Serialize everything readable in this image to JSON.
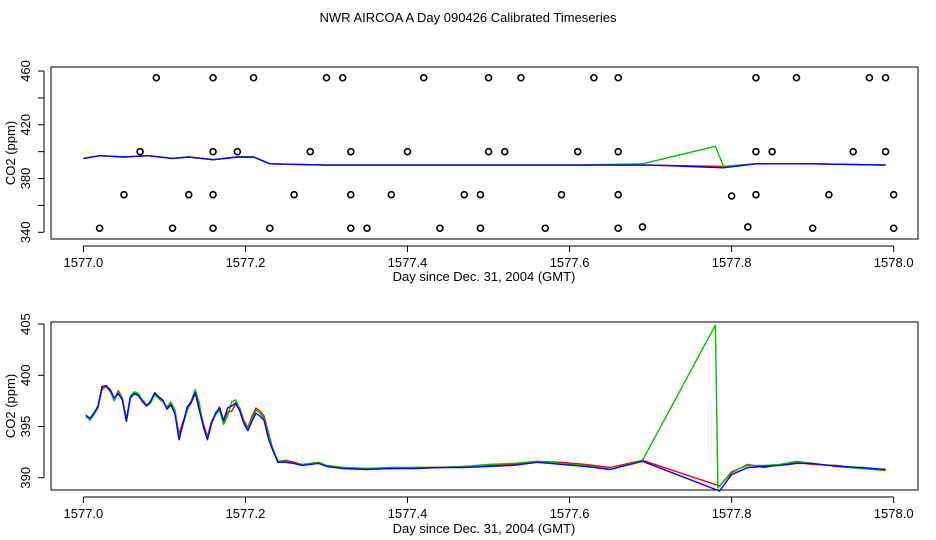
{
  "title": "NWR AIRCOA A  Day 090426  Calibrated Timeseries",
  "chart_data": [
    {
      "type": "line",
      "id": "top",
      "xlabel": "Day since Dec. 31, 2004 (GMT)",
      "ylabel": "CO2 (ppm)",
      "xlim": [
        1576.96,
        1578.03
      ],
      "ylim": [
        335,
        463
      ],
      "xticks": [
        "1577.0",
        "1577.2",
        "1577.4",
        "1577.6",
        "1577.8",
        "1578.0"
      ],
      "yticks": [
        "340",
        "380",
        "420",
        "460"
      ],
      "yticks_minor": [
        360,
        400,
        440
      ],
      "markers": [
        {
          "name": "calibration points",
          "style": "open-circle",
          "x": [
            1577.09,
            1577.16,
            1577.21,
            1577.3,
            1577.32,
            1577.42,
            1577.5,
            1577.54,
            1577.63,
            1577.66,
            1577.83,
            1577.88,
            1577.97,
            1577.99,
            1577.07,
            1577.16,
            1577.19,
            1577.28,
            1577.33,
            1577.4,
            1577.5,
            1577.52,
            1577.61,
            1577.66,
            1577.83,
            1577.85,
            1577.95,
            1577.99,
            1577.05,
            1577.13,
            1577.16,
            1577.26,
            1577.33,
            1577.38,
            1577.47,
            1577.49,
            1577.59,
            1577.66,
            1577.8,
            1577.83,
            1577.92,
            1578.0,
            1577.02,
            1577.11,
            1577.16,
            1577.23,
            1577.33,
            1577.35,
            1577.44,
            1577.49,
            1577.57,
            1577.66,
            1577.69,
            1577.82,
            1577.9,
            1578.0
          ],
          "y": [
            455,
            455,
            455,
            455,
            455,
            455,
            455,
            455,
            455,
            455,
            455,
            455,
            455,
            455,
            400,
            400,
            400,
            400,
            400,
            400,
            400,
            400,
            400,
            400,
            400,
            400,
            400,
            400,
            368,
            368,
            368,
            368,
            368,
            368,
            368,
            368,
            368,
            368,
            367,
            368,
            368,
            368,
            343,
            343,
            343,
            343,
            343,
            343,
            343,
            343,
            343,
            343,
            344,
            344,
            343,
            343
          ]
        }
      ],
      "series": [
        {
          "name": "red",
          "color": "#ff0000",
          "x": [
            1577.0,
            1577.02,
            1577.05,
            1577.08,
            1577.11,
            1577.13,
            1577.16,
            1577.19,
            1577.21,
            1577.23,
            1577.3,
            1577.4,
            1577.5,
            1577.6,
            1577.7,
            1577.79,
            1577.83,
            1577.9,
            1577.99
          ],
          "y": [
            395,
            397,
            396,
            397,
            395,
            396,
            394,
            396,
            396,
            391,
            390,
            390,
            390,
            390,
            390,
            389,
            391,
            391,
            390
          ]
        },
        {
          "name": "green",
          "color": "#00c000",
          "x": [
            1577.0,
            1577.02,
            1577.05,
            1577.08,
            1577.11,
            1577.13,
            1577.16,
            1577.19,
            1577.21,
            1577.23,
            1577.3,
            1577.4,
            1577.5,
            1577.6,
            1577.69,
            1577.78,
            1577.79,
            1577.83,
            1577.9,
            1577.99
          ],
          "y": [
            395,
            397,
            396,
            397,
            395,
            396,
            394,
            396,
            396,
            391,
            390,
            390,
            390,
            390,
            391,
            404,
            389,
            391,
            391,
            390
          ]
        },
        {
          "name": "blue",
          "color": "#0000ff",
          "x": [
            1577.0,
            1577.02,
            1577.05,
            1577.08,
            1577.11,
            1577.13,
            1577.16,
            1577.19,
            1577.21,
            1577.23,
            1577.3,
            1577.4,
            1577.5,
            1577.6,
            1577.7,
            1577.79,
            1577.83,
            1577.9,
            1577.99
          ],
          "y": [
            395,
            397,
            396,
            397,
            395,
            396,
            394,
            396,
            396,
            391,
            390,
            390,
            390,
            390,
            390,
            388,
            391,
            391,
            390
          ]
        }
      ]
    },
    {
      "type": "line",
      "id": "bottom",
      "xlabel": "Day since Dec. 31, 2004 (GMT)",
      "ylabel": "CO2 (ppm)",
      "xlim": [
        1576.96,
        1578.03
      ],
      "ylim": [
        388.8,
        405.2
      ],
      "xticks": [
        "1577.0",
        "1577.2",
        "1577.4",
        "1577.6",
        "1577.8",
        "1578.0"
      ],
      "yticks": [
        "390",
        "395",
        "400",
        "405"
      ],
      "series": [
        {
          "name": "red",
          "color": "#ff0000",
          "x": [
            1577.003,
            1577.008,
            1577.013,
            1577.018,
            1577.023,
            1577.028,
            1577.033,
            1577.038,
            1577.043,
            1577.048,
            1577.053,
            1577.058,
            1577.063,
            1577.068,
            1577.073,
            1577.078,
            1577.083,
            1577.088,
            1577.093,
            1577.098,
            1577.103,
            1577.108,
            1577.113,
            1577.118,
            1577.123,
            1577.128,
            1577.133,
            1577.138,
            1577.143,
            1577.148,
            1577.153,
            1577.158,
            1577.163,
            1577.168,
            1577.173,
            1577.178,
            1577.183,
            1577.188,
            1577.193,
            1577.198,
            1577.203,
            1577.208,
            1577.213,
            1577.218,
            1577.223,
            1577.228,
            1577.233,
            1577.24,
            1577.25,
            1577.26,
            1577.27,
            1577.28,
            1577.29,
            1577.3,
            1577.32,
            1577.35,
            1577.38,
            1577.41,
            1577.44,
            1577.47,
            1577.5,
            1577.53,
            1577.56,
            1577.59,
            1577.62,
            1577.65,
            1577.69,
            1577.785,
            1577.8,
            1577.82,
            1577.84,
            1577.86,
            1577.88,
            1577.9,
            1577.93,
            1577.96,
            1577.99
          ],
          "y": [
            396.0,
            395.7,
            396.2,
            396.8,
            398.6,
            398.9,
            398.4,
            397.6,
            398.5,
            397.8,
            395.7,
            398.0,
            398.3,
            398.1,
            397.6,
            397.1,
            397.4,
            398.2,
            397.8,
            397.5,
            396.8,
            397.3,
            396.5,
            394.3,
            395.5,
            396.6,
            397.3,
            398.2,
            397.0,
            395.3,
            394.0,
            395.5,
            396.2,
            396.9,
            395.5,
            396.4,
            396.5,
            397.2,
            396.8,
            395.6,
            394.9,
            396.0,
            396.8,
            396.5,
            396.0,
            394.5,
            393.0,
            391.6,
            391.7,
            391.5,
            391.3,
            391.4,
            391.5,
            391.2,
            391.0,
            390.9,
            390.9,
            391.0,
            391.0,
            391.1,
            391.2,
            391.3,
            391.6,
            391.5,
            391.3,
            391.0,
            391.7,
            389.2,
            390.5,
            391.3,
            391.0,
            391.3,
            391.5,
            391.3,
            391.2,
            390.9,
            390.8
          ]
        },
        {
          "name": "green",
          "color": "#00c000",
          "x": [
            1577.003,
            1577.008,
            1577.013,
            1577.018,
            1577.023,
            1577.028,
            1577.033,
            1577.038,
            1577.043,
            1577.048,
            1577.053,
            1577.058,
            1577.063,
            1577.068,
            1577.073,
            1577.078,
            1577.083,
            1577.088,
            1577.093,
            1577.098,
            1577.103,
            1577.108,
            1577.113,
            1577.118,
            1577.123,
            1577.128,
            1577.133,
            1577.138,
            1577.143,
            1577.148,
            1577.153,
            1577.158,
            1577.163,
            1577.168,
            1577.173,
            1577.178,
            1577.183,
            1577.188,
            1577.193,
            1577.198,
            1577.203,
            1577.208,
            1577.213,
            1577.218,
            1577.223,
            1577.228,
            1577.233,
            1577.24,
            1577.25,
            1577.26,
            1577.27,
            1577.28,
            1577.29,
            1577.3,
            1577.32,
            1577.35,
            1577.38,
            1577.41,
            1577.44,
            1577.47,
            1577.5,
            1577.53,
            1577.56,
            1577.59,
            1577.62,
            1577.65,
            1577.69,
            1577.78,
            1577.783,
            1577.8,
            1577.82,
            1577.84,
            1577.86,
            1577.88,
            1577.9,
            1577.93,
            1577.96,
            1577.99
          ],
          "y": [
            396.0,
            395.6,
            396.1,
            396.9,
            398.8,
            399.0,
            398.5,
            397.5,
            398.4,
            397.7,
            395.6,
            398.0,
            398.4,
            398.2,
            397.5,
            397.0,
            397.3,
            398.1,
            397.7,
            397.4,
            396.9,
            397.4,
            396.6,
            394.0,
            395.2,
            396.5,
            397.5,
            398.6,
            397.3,
            395.0,
            393.8,
            395.4,
            396.1,
            396.6,
            395.2,
            396.0,
            397.4,
            397.6,
            396.7,
            395.4,
            394.8,
            395.8,
            396.6,
            396.3,
            395.8,
            394.3,
            393.0,
            391.6,
            391.6,
            391.4,
            391.3,
            391.4,
            391.5,
            391.2,
            391.0,
            390.9,
            391.0,
            391.0,
            391.0,
            391.1,
            391.3,
            391.4,
            391.6,
            391.4,
            391.2,
            390.8,
            391.7,
            404.9,
            389.0,
            390.6,
            391.2,
            391.2,
            391.3,
            391.6,
            391.4,
            391.1,
            390.9,
            390.7
          ]
        },
        {
          "name": "blue",
          "color": "#0000ff",
          "x": [
            1577.003,
            1577.008,
            1577.013,
            1577.018,
            1577.023,
            1577.028,
            1577.033,
            1577.038,
            1577.043,
            1577.048,
            1577.053,
            1577.058,
            1577.063,
            1577.068,
            1577.073,
            1577.078,
            1577.083,
            1577.088,
            1577.093,
            1577.098,
            1577.103,
            1577.108,
            1577.113,
            1577.118,
            1577.123,
            1577.128,
            1577.133,
            1577.138,
            1577.143,
            1577.148,
            1577.153,
            1577.158,
            1577.163,
            1577.168,
            1577.173,
            1577.178,
            1577.183,
            1577.188,
            1577.193,
            1577.198,
            1577.203,
            1577.208,
            1577.213,
            1577.218,
            1577.223,
            1577.228,
            1577.233,
            1577.24,
            1577.25,
            1577.26,
            1577.27,
            1577.28,
            1577.29,
            1577.3,
            1577.32,
            1577.35,
            1577.38,
            1577.41,
            1577.44,
            1577.47,
            1577.5,
            1577.53,
            1577.56,
            1577.59,
            1577.62,
            1577.65,
            1577.69,
            1577.785,
            1577.8,
            1577.82,
            1577.84,
            1577.86,
            1577.88,
            1577.9,
            1577.93,
            1577.96,
            1577.99
          ],
          "y": [
            396.1,
            395.8,
            396.3,
            397.0,
            398.9,
            399.0,
            398.6,
            397.8,
            398.2,
            397.6,
            395.5,
            397.8,
            398.2,
            398.0,
            397.4,
            397.0,
            397.5,
            398.3,
            397.9,
            397.6,
            396.7,
            397.1,
            396.2,
            393.7,
            395.3,
            396.9,
            397.4,
            398.3,
            396.6,
            395.0,
            393.7,
            395.2,
            396.3,
            396.8,
            395.6,
            396.8,
            397.0,
            397.3,
            396.5,
            395.3,
            394.6,
            395.5,
            396.3,
            396.0,
            395.6,
            393.9,
            392.8,
            391.5,
            391.5,
            391.4,
            391.2,
            391.3,
            391.4,
            391.1,
            390.9,
            390.8,
            390.9,
            390.9,
            391.0,
            391.0,
            391.1,
            391.2,
            391.5,
            391.3,
            391.1,
            390.8,
            391.6,
            388.7,
            390.3,
            391.0,
            391.1,
            391.2,
            391.4,
            391.4,
            391.1,
            391.0,
            390.8
          ]
        }
      ]
    }
  ]
}
